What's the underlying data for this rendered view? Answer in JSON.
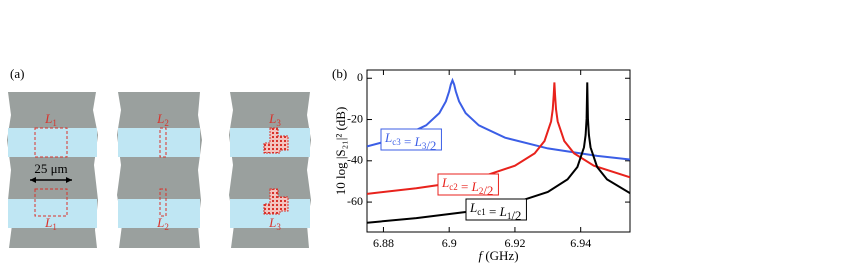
{
  "panel_a": {
    "panel_label": "(a)",
    "scale_label": "25 μm",
    "structures": [
      {
        "top": "L1",
        "bottom": "L1"
      },
      {
        "top": "L2",
        "bottom": "L2"
      },
      {
        "top": "L3",
        "bottom": "L3"
      }
    ]
  },
  "chart_data": {
    "type": "line",
    "panel_label": "(b)",
    "x_label": "f (GHz)",
    "y_label": "10 log |S₂₁|² (dB)",
    "xlim": [
      6.875,
      6.955
    ],
    "xticks": [
      6.88,
      6.9,
      6.92,
      6.94
    ],
    "ylim": [
      -74.5,
      4
    ],
    "yticks": [
      0,
      -20,
      -40,
      -60
    ],
    "series": [
      {
        "name": "Lc3 = L3/2",
        "color": "#3b5ee6",
        "x": [
          6.875,
          6.885,
          6.893,
          6.897,
          6.899,
          6.9,
          6.9005,
          6.901,
          6.9015,
          6.902,
          6.903,
          6.905,
          6.909,
          6.917,
          6.93,
          6.945,
          6.955
        ],
        "values": [
          -33,
          -28.8,
          -22.8,
          -16.9,
          -11.2,
          -6.3,
          -3,
          -1,
          -3,
          -6.3,
          -11.2,
          -16.9,
          -22.8,
          -28.8,
          -34,
          -37.6,
          -39.4
        ]
      },
      {
        "name": "Lc2 = L2/2",
        "color": "#e8221c",
        "x": [
          6.875,
          6.89,
          6.9,
          6.91,
          6.92,
          6.926,
          6.929,
          6.931,
          6.9315,
          6.9318,
          6.932,
          6.9322,
          6.9325,
          6.933,
          6.935,
          6.938,
          6.944,
          6.955
        ],
        "values": [
          -56,
          -53.3,
          -51,
          -47.7,
          -42.4,
          -36.4,
          -30.4,
          -20.9,
          -15.1,
          -8.1,
          -2,
          -8.1,
          -15.1,
          -20.9,
          -30.4,
          -36.4,
          -42.4,
          -48
        ]
      },
      {
        "name": "Lc1 = L1/2",
        "color": "#000000",
        "x": [
          6.875,
          6.89,
          6.905,
          6.92,
          6.93,
          6.936,
          6.939,
          6.941,
          6.9415,
          6.9418,
          6.942,
          6.9422,
          6.9425,
          6.943,
          6.945,
          6.948,
          6.955
        ],
        "values": [
          -70,
          -67.8,
          -64.8,
          -60.3,
          -55.1,
          -49,
          -43,
          -33.5,
          -27.5,
          -19.6,
          -2,
          -19.6,
          -27.5,
          -33.5,
          -43,
          -49,
          -55.7
        ]
      }
    ]
  }
}
